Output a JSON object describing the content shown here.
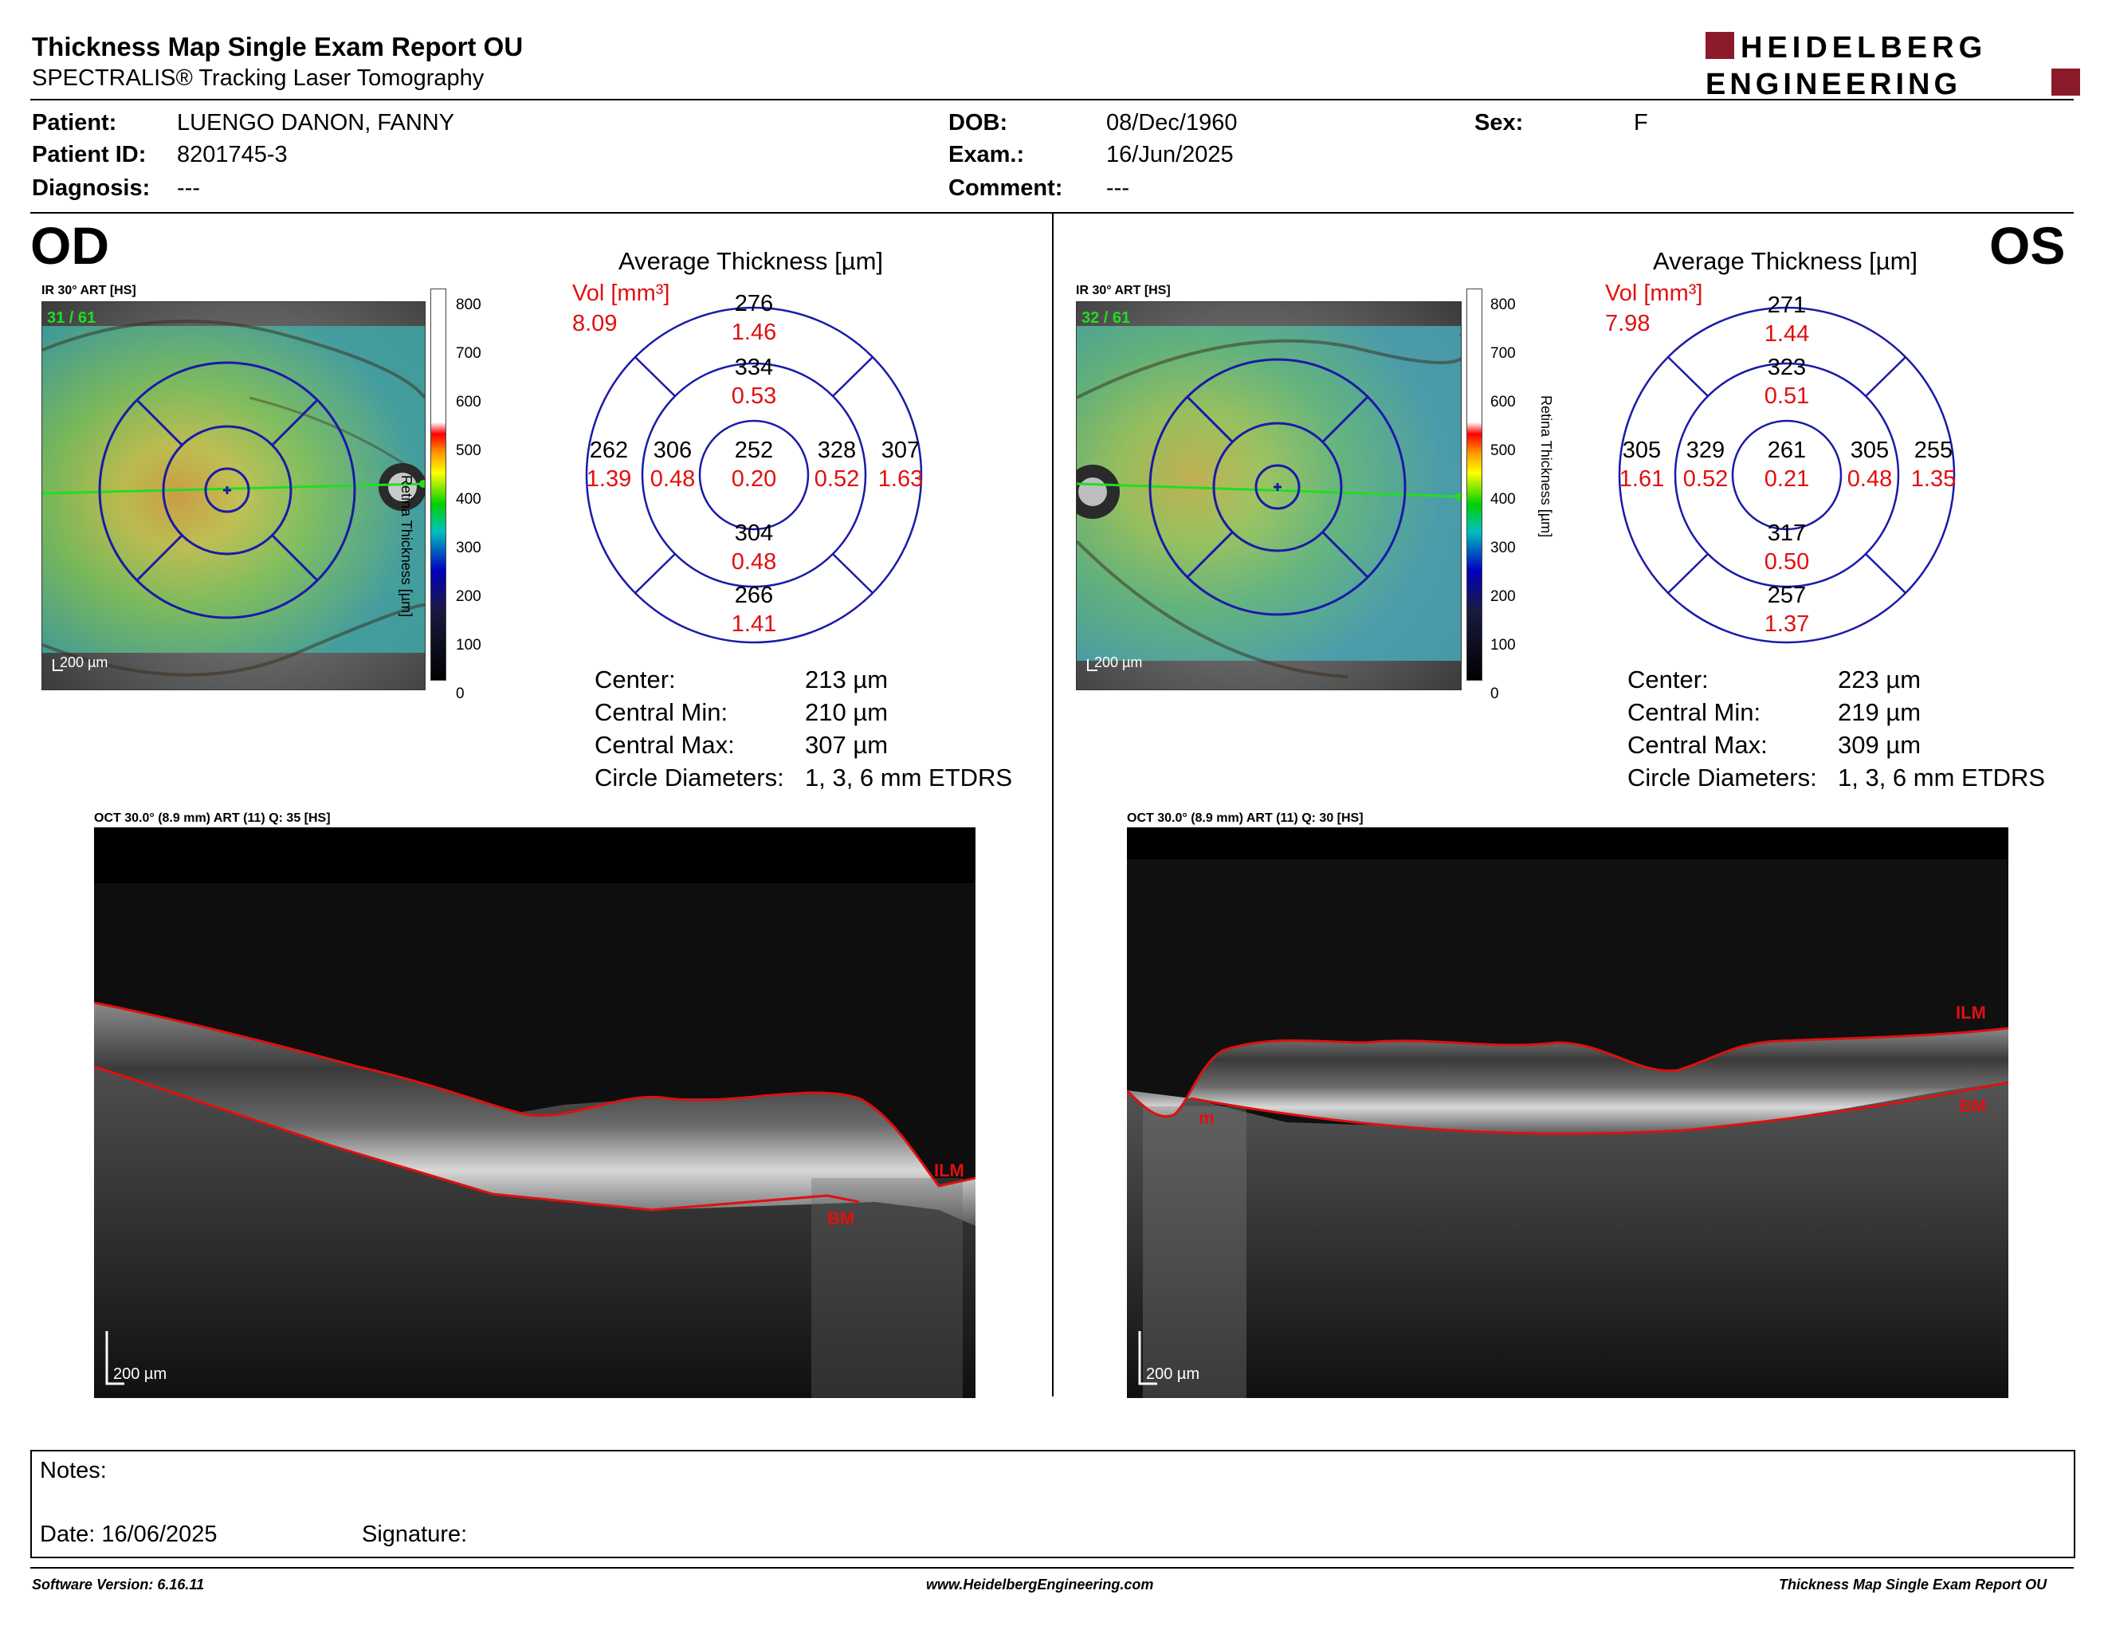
{
  "report": {
    "title": "Thickness Map Single Exam Report OU",
    "subtitle": "SPECTRALIS® Tracking Laser Tomography",
    "brand_line1": "HEIDELBERG",
    "brand_line2": "ENGINEERING"
  },
  "patient": {
    "patient_label": "Patient:",
    "patient_value": "LUENGO DANON, FANNY",
    "id_label": "Patient ID:",
    "id_value": "8201745-3",
    "diagnosis_label": "Diagnosis:",
    "diagnosis_value": "---",
    "dob_label": "DOB:",
    "dob_value": "08/Dec/1960",
    "exam_label": "Exam.:",
    "exam_value": "16/Jun/2025",
    "comment_label": "Comment:",
    "comment_value": "---",
    "sex_label": "Sex:",
    "sex_value": "F"
  },
  "od": {
    "eye": "OD",
    "ir_label": "IR 30° ART [HS]",
    "frames": "31 / 61",
    "scale_bar": "200 µm",
    "colorbar_ticks": [
      "800",
      "700",
      "600",
      "500",
      "400",
      "300",
      "200",
      "100",
      "0"
    ],
    "colorbar_label": "Retina Thickness [µm]",
    "avg_title": "Average Thickness [µm]",
    "vol_label": "Vol [mm³]",
    "vol_value": "8.09",
    "sectors": {
      "outer_top": [
        "276",
        "1.46"
      ],
      "inner_top": [
        "334",
        "0.53"
      ],
      "outer_left": [
        "262",
        "1.39"
      ],
      "inner_left": [
        "306",
        "0.48"
      ],
      "center": [
        "252",
        "0.20"
      ],
      "inner_right": [
        "328",
        "0.52"
      ],
      "outer_right": [
        "307",
        "1.63"
      ],
      "inner_bottom": [
        "304",
        "0.48"
      ],
      "outer_bottom": [
        "266",
        "1.41"
      ]
    },
    "stats": {
      "center_label": "Center:",
      "center_value": "213 µm",
      "min_label": "Central Min:",
      "min_value": "210 µm",
      "max_label": "Central Max:",
      "max_value": "307 µm",
      "diam_label": "Circle Diameters:",
      "diam_value": "1, 3, 6 mm ETDRS"
    },
    "oct_label": "OCT 30.0° (8.9 mm) ART (11) Q: 35 [HS]",
    "oct_scale": "200 µm",
    "ilm": "ILM",
    "bm": "BM"
  },
  "os": {
    "eye": "OS",
    "ir_label": "IR 30° ART [HS]",
    "frames": "32 / 61",
    "scale_bar": "200 µm",
    "colorbar_ticks": [
      "800",
      "700",
      "600",
      "500",
      "400",
      "300",
      "200",
      "100",
      "0"
    ],
    "colorbar_label": "Retina Thickness [µm]",
    "avg_title": "Average Thickness [µm]",
    "vol_label": "Vol [mm³]",
    "vol_value": "7.98",
    "sectors": {
      "outer_top": [
        "271",
        "1.44"
      ],
      "inner_top": [
        "323",
        "0.51"
      ],
      "outer_left": [
        "305",
        "1.61"
      ],
      "inner_left": [
        "329",
        "0.52"
      ],
      "center": [
        "261",
        "0.21"
      ],
      "inner_right": [
        "305",
        "0.48"
      ],
      "outer_right": [
        "255",
        "1.35"
      ],
      "inner_bottom": [
        "317",
        "0.50"
      ],
      "outer_bottom": [
        "257",
        "1.37"
      ]
    },
    "stats": {
      "center_label": "Center:",
      "center_value": "223 µm",
      "min_label": "Central Min:",
      "min_value": "219 µm",
      "max_label": "Central Max:",
      "max_value": "309 µm",
      "diam_label": "Circle Diameters:",
      "diam_value": "1, 3, 6 mm ETDRS"
    },
    "oct_label": "OCT 30.0° (8.9 mm) ART (11) Q: 30 [HS]",
    "oct_scale": "200 µm",
    "ilm": "ILM",
    "bm": "BM",
    "m": "m"
  },
  "notes": {
    "notes_label": "Notes:",
    "date_label": "Date: 16/06/2025",
    "signature_label": "Signature:"
  },
  "footer": {
    "software": "Software Version: 6.16.11",
    "website": "www.HeidelbergEngineering.com",
    "report_name": "Thickness Map Single Exam Report OU"
  },
  "colors": {
    "brand": "#8b1a2b",
    "value_red": "#e01010",
    "etdrs_blue": "#1a1aa8",
    "scan_green": "#22dd22"
  }
}
